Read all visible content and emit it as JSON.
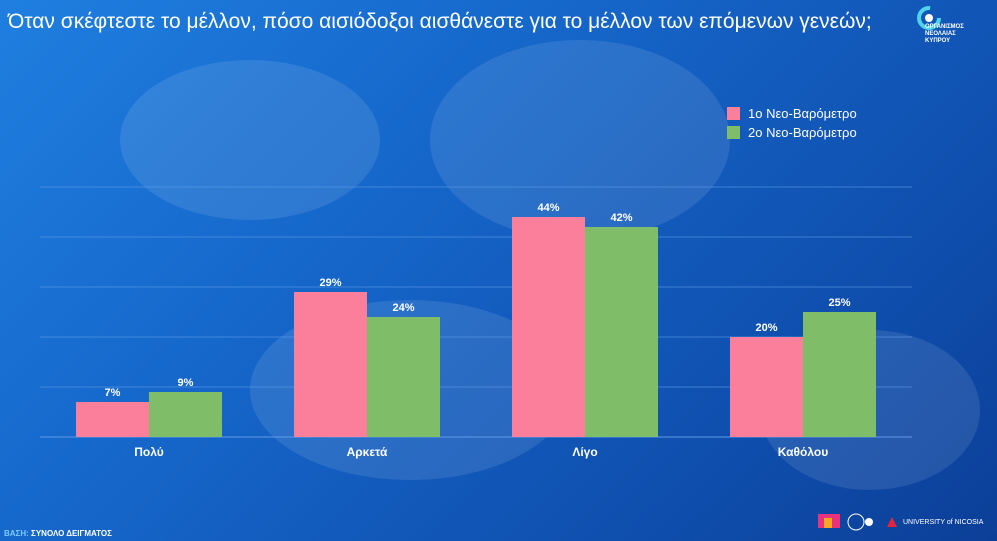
{
  "title": "Όταν σκέφτεστε το μέλλον, πόσο αισιόδοξοι αισθάνεστε για το μέλλον των επόμενων γενεών;",
  "logo": {
    "org_text": "ΟΡΓΑΝΙΣΜΟΣ\nΝΕΟΛΑΙΑΣ\nΚΥΠΡΟΥ"
  },
  "footer": {
    "base_key": "ΒΑΣΗ:",
    "base_value": "ΣΥΝΟΛΟ ΔΕΙΓΜΑΤΟΣ",
    "imr_logo": "IMR",
    "unic_logo": "UNIVERSITY of NICOSIA"
  },
  "colors": {
    "series1": "#fb7f9b",
    "series2": "#7fbd68",
    "grid": "#5d9be6"
  },
  "chart_data": {
    "type": "bar",
    "title": "Όταν σκέφτεστε το μέλλον, πόσο αισιόδοξοι αισθάνεστε για το μέλλον των επόμενων γενεών;",
    "categories": [
      "Πολύ",
      "Αρκετά",
      "Λίγο",
      "Καθόλου"
    ],
    "series": [
      {
        "name": "1ο Νεο-Βαρόμετρο",
        "values": [
          7,
          29,
          44,
          20
        ],
        "labels": [
          "7%",
          "29%",
          "44%",
          "20%"
        ]
      },
      {
        "name": "2ο Νεο-Βαρόμετρο",
        "values": [
          9,
          24,
          42,
          25
        ],
        "labels": [
          "9%",
          "24%",
          "42%",
          "25%"
        ]
      }
    ],
    "ylim": [
      0,
      50
    ],
    "grid": true,
    "legend_position": "top-right"
  }
}
